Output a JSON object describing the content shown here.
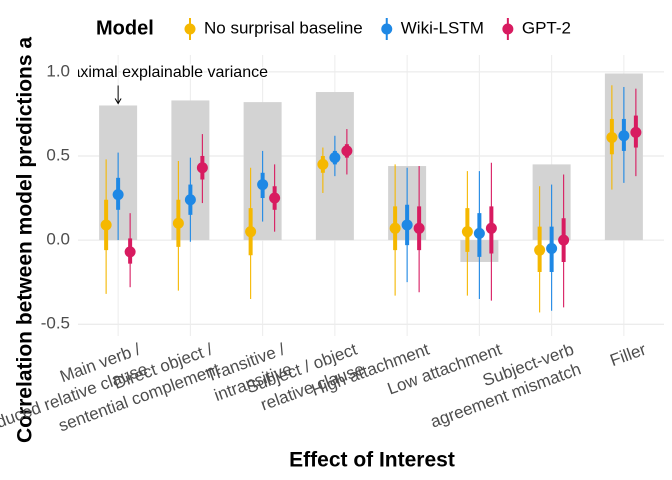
{
  "chart_data": {
    "type": "pointrange",
    "x_label": "Effect of Interest",
    "y_label": "Correlation between model predictions a",
    "legend_title": "Model",
    "legend_position": "top",
    "grid": true,
    "annotation": "Maximal explainable variance",
    "categories": [
      "Main verb /\nreduced relative clause",
      "Direct object /\nsentential complement",
      "Transitive /\nintransitive",
      "Subject / object\nrelative clause",
      "High attachment",
      "Low attachment",
      "Subject-verb\nagreement mismatch",
      "Filler"
    ],
    "ceiling": {
      "color": "#d3d3d3",
      "values": [
        0.8,
        0.83,
        0.82,
        0.88,
        0.44,
        -0.13,
        0.45,
        0.99
      ]
    },
    "ylim": [
      -0.57,
      1.1
    ],
    "yticks": [
      -0.5,
      {
        "value": 0,
        "label": "0.0"
      },
      0.5,
      {
        "value": 1,
        "label": "1.0"
      }
    ],
    "series": [
      {
        "name": "No surprisal baseline",
        "color": "#f5b800",
        "values": [
          0.09,
          0.1,
          0.05,
          0.45,
          0.07,
          0.05,
          -0.06,
          0.61
        ],
        "lower": [
          -0.32,
          -0.3,
          -0.35,
          0.28,
          -0.33,
          -0.33,
          -0.43,
          0.3
        ],
        "upper": [
          0.48,
          0.47,
          0.43,
          0.55,
          0.45,
          0.41,
          0.32,
          0.92
        ],
        "lower_inner": [
          -0.06,
          -0.04,
          -0.09,
          0.4,
          -0.06,
          -0.07,
          -0.19,
          0.51
        ],
        "upper_inner": [
          0.24,
          0.24,
          0.19,
          0.5,
          0.2,
          0.19,
          0.08,
          0.72
        ]
      },
      {
        "name": "Wiki-LSTM",
        "color": "#1e88e5",
        "values": [
          0.27,
          0.24,
          0.33,
          0.49,
          0.09,
          0.04,
          -0.05,
          0.62
        ],
        "lower": [
          0.0,
          -0.01,
          0.11,
          0.38,
          -0.25,
          -0.35,
          -0.42,
          0.34
        ],
        "upper": [
          0.52,
          0.49,
          0.53,
          0.62,
          0.43,
          0.41,
          0.33,
          0.91
        ],
        "lower_inner": [
          0.18,
          0.15,
          0.25,
          0.45,
          -0.03,
          -0.1,
          -0.19,
          0.53
        ],
        "upper_inner": [
          0.37,
          0.33,
          0.4,
          0.53,
          0.21,
          0.16,
          0.08,
          0.72
        ]
      },
      {
        "name": "GPT-2",
        "color": "#d81b60",
        "values": [
          -0.07,
          0.43,
          0.25,
          0.53,
          0.07,
          0.07,
          0.0,
          0.64
        ],
        "lower": [
          -0.28,
          0.22,
          0.05,
          0.39,
          -0.31,
          -0.36,
          -0.4,
          0.38
        ],
        "upper": [
          0.16,
          0.63,
          0.45,
          0.66,
          0.44,
          0.46,
          0.39,
          0.9
        ],
        "lower_inner": [
          -0.14,
          0.36,
          0.18,
          0.49,
          -0.06,
          -0.08,
          -0.13,
          0.55
        ],
        "upper_inner": [
          0.01,
          0.5,
          0.32,
          0.57,
          0.2,
          0.2,
          0.13,
          0.74
        ]
      }
    ]
  }
}
